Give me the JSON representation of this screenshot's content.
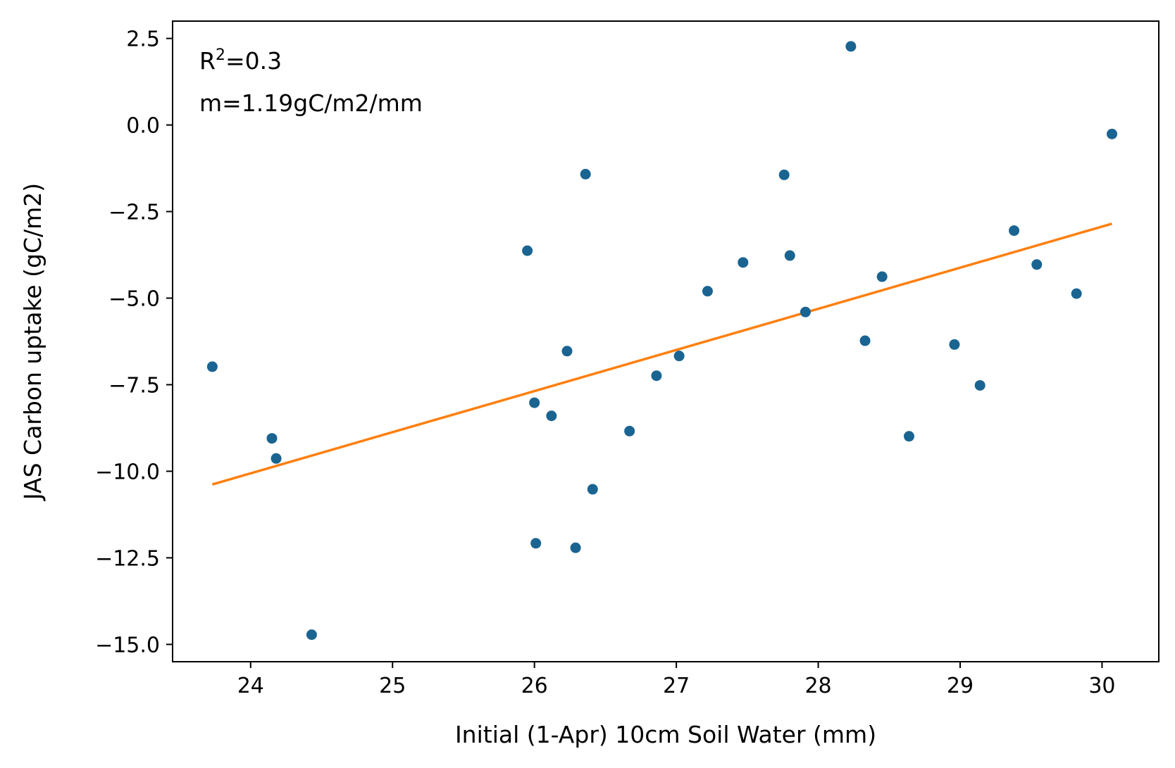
{
  "chart_data": {
    "type": "scatter",
    "xlabel": "Initial (1-Apr) 10cm Soil Water (mm)",
    "ylabel": "JAS Carbon uptake (gC/m2)",
    "xlim": [
      23.45,
      30.4
    ],
    "ylim": [
      -15.5,
      3.0
    ],
    "x_ticks": [
      24,
      25,
      26,
      27,
      28,
      29,
      30
    ],
    "y_ticks": [
      2.5,
      0.0,
      -2.5,
      -5.0,
      -7.5,
      -10.0,
      -12.5,
      -15.0
    ],
    "x_tick_labels": [
      "24",
      "25",
      "26",
      "27",
      "28",
      "29",
      "30"
    ],
    "y_tick_labels": [
      "2.5",
      "0.0",
      "−2.5",
      "−5.0",
      "−7.5",
      "−10.0",
      "−12.5",
      "−15.0"
    ],
    "grid": false,
    "points_color": "#1a6492",
    "fit_color": "#ff7f0e",
    "points": [
      {
        "x": 23.73,
        "y": -6.98
      },
      {
        "x": 24.15,
        "y": -9.05
      },
      {
        "x": 24.18,
        "y": -9.63
      },
      {
        "x": 24.43,
        "y": -14.72
      },
      {
        "x": 25.95,
        "y": -3.63
      },
      {
        "x": 26.0,
        "y": -8.02
      },
      {
        "x": 26.01,
        "y": -12.08
      },
      {
        "x": 26.12,
        "y": -8.4
      },
      {
        "x": 26.23,
        "y": -6.53
      },
      {
        "x": 26.29,
        "y": -12.21
      },
      {
        "x": 26.36,
        "y": -1.42
      },
      {
        "x": 26.41,
        "y": -10.52
      },
      {
        "x": 26.67,
        "y": -8.84
      },
      {
        "x": 26.86,
        "y": -7.24
      },
      {
        "x": 27.02,
        "y": -6.67
      },
      {
        "x": 27.22,
        "y": -4.8
      },
      {
        "x": 27.47,
        "y": -3.97
      },
      {
        "x": 27.76,
        "y": -1.44
      },
      {
        "x": 27.8,
        "y": -3.77
      },
      {
        "x": 27.91,
        "y": -5.4
      },
      {
        "x": 28.23,
        "y": 2.27
      },
      {
        "x": 28.33,
        "y": -6.23
      },
      {
        "x": 28.45,
        "y": -4.38
      },
      {
        "x": 28.64,
        "y": -8.99
      },
      {
        "x": 28.96,
        "y": -6.34
      },
      {
        "x": 29.14,
        "y": -7.52
      },
      {
        "x": 29.38,
        "y": -3.05
      },
      {
        "x": 29.54,
        "y": -4.03
      },
      {
        "x": 29.82,
        "y": -4.87
      },
      {
        "x": 30.07,
        "y": -0.26
      }
    ],
    "fit_line": {
      "x": [
        23.73,
        30.07
      ],
      "y": [
        -10.38,
        -2.85
      ]
    },
    "annotations": {
      "r2_base": "R",
      "r2_sup": "2",
      "r2_value": "=0.3",
      "slope": "m=1.19gC/m2/mm"
    }
  }
}
